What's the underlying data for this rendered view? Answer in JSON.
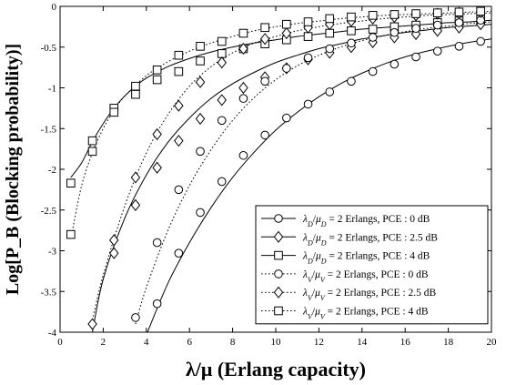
{
  "chart_data": {
    "type": "line",
    "title": "",
    "xlabel": "λ/μ (Erlang capacity)",
    "ylabel": "Log[P_B (Blocking probability)]",
    "xlim": [
      0,
      20
    ],
    "ylim": [
      -4,
      0
    ],
    "x_ticks": [
      "0",
      "2",
      "4",
      "6",
      "8",
      "10",
      "12",
      "14",
      "16",
      "18",
      "20"
    ],
    "y_ticks": [
      "0",
      "-0.5",
      "-1",
      "-1.5",
      "-2",
      "-2.5",
      "-3",
      "-3.5",
      "-4"
    ],
    "grid": false,
    "legend_position": "bottom-right",
    "series": [
      {
        "name": "λD/μD = 2 Erlangs, PCE : 0 dB",
        "label_parts": [
          "λ",
          "D",
          "/",
          "μ",
          "D",
          " = 2 Erlangs, PCE : 0 dB"
        ],
        "marker": "circle",
        "line": "solid",
        "curve": [
          [
            4.05,
            -4.0
          ],
          [
            5,
            -3.4
          ],
          [
            6,
            -2.9
          ],
          [
            7,
            -2.47
          ],
          [
            8,
            -2.1
          ],
          [
            9,
            -1.79
          ],
          [
            10,
            -1.52
          ],
          [
            11,
            -1.3
          ],
          [
            12,
            -1.11
          ],
          [
            13,
            -0.95
          ],
          [
            14,
            -0.82
          ],
          [
            15,
            -0.71
          ],
          [
            16,
            -0.62
          ],
          [
            17,
            -0.55
          ],
          [
            18,
            -0.49
          ],
          [
            19,
            -0.44
          ],
          [
            20,
            -0.4
          ]
        ],
        "points": [
          [
            4.5,
            -3.65
          ],
          [
            5.5,
            -3.03
          ],
          [
            6.5,
            -2.53
          ],
          [
            7.5,
            -2.15
          ],
          [
            8.5,
            -1.83
          ],
          [
            9.5,
            -1.58
          ],
          [
            10.5,
            -1.37
          ],
          [
            11.5,
            -1.2
          ],
          [
            12.5,
            -1.05
          ],
          [
            13.5,
            -0.92
          ],
          [
            14.5,
            -0.8
          ],
          [
            15.5,
            -0.71
          ],
          [
            16.5,
            -0.62
          ],
          [
            17.5,
            -0.55
          ],
          [
            18.5,
            -0.49
          ],
          [
            19.5,
            -0.43
          ]
        ]
      },
      {
        "name": "λD/μD = 2 Erlangs, PCE : 2.5 dB",
        "label_parts": [
          "λ",
          "D",
          "/",
          "μ",
          "D",
          " = 2 Erlangs, PCE : 2.5 dB"
        ],
        "marker": "diamond",
        "line": "solid",
        "curve": [
          [
            1.5,
            -4.0
          ],
          [
            2,
            -3.35
          ],
          [
            3,
            -2.6
          ],
          [
            4,
            -2.07
          ],
          [
            5,
            -1.67
          ],
          [
            6,
            -1.37
          ],
          [
            7,
            -1.13
          ],
          [
            8,
            -0.95
          ],
          [
            9,
            -0.81
          ],
          [
            10,
            -0.69
          ],
          [
            11,
            -0.6
          ],
          [
            12,
            -0.52
          ],
          [
            13,
            -0.46
          ],
          [
            14,
            -0.4
          ],
          [
            15,
            -0.36
          ],
          [
            16,
            -0.32
          ],
          [
            17,
            -0.29
          ],
          [
            18,
            -0.26
          ],
          [
            19,
            -0.24
          ],
          [
            20,
            -0.22
          ]
        ],
        "points": [
          [
            2.5,
            -3.03
          ],
          [
            3.5,
            -2.44
          ],
          [
            4.5,
            -1.98
          ],
          [
            5.5,
            -1.65
          ],
          [
            6.5,
            -1.38
          ],
          [
            7.5,
            -1.15
          ],
          [
            8.5,
            -1.0
          ],
          [
            9.5,
            -0.87
          ],
          [
            10.5,
            -0.76
          ],
          [
            11.5,
            -0.65
          ],
          [
            12.5,
            -0.57
          ],
          [
            13.5,
            -0.5
          ],
          [
            14.5,
            -0.44
          ],
          [
            15.5,
            -0.38
          ],
          [
            16.5,
            -0.34
          ],
          [
            17.5,
            -0.3
          ],
          [
            18.5,
            -0.26
          ],
          [
            19.5,
            -0.22
          ]
        ]
      },
      {
        "name": "λD/μD = 2 Erlangs, PCE : 4 dB",
        "label_parts": [
          "λ",
          "D",
          "/",
          "μ",
          "D",
          " = 2 Erlangs, PCE : 4 dB"
        ],
        "marker": "square",
        "line": "solid",
        "curve": [
          [
            0.5,
            -2.1
          ],
          [
            1,
            -1.92
          ],
          [
            1.5,
            -1.66
          ],
          [
            2,
            -1.44
          ],
          [
            2.5,
            -1.25
          ],
          [
            3,
            -1.1
          ],
          [
            3.5,
            -0.98
          ],
          [
            4,
            -0.88
          ],
          [
            5,
            -0.74
          ],
          [
            6,
            -0.64
          ],
          [
            7,
            -0.56
          ],
          [
            8,
            -0.5
          ],
          [
            9,
            -0.45
          ],
          [
            10,
            -0.41
          ],
          [
            11,
            -0.37
          ],
          [
            12,
            -0.34
          ],
          [
            13,
            -0.31
          ],
          [
            14,
            -0.28
          ],
          [
            15,
            -0.26
          ],
          [
            16,
            -0.24
          ],
          [
            17,
            -0.22
          ],
          [
            18,
            -0.2
          ],
          [
            19,
            -0.19
          ],
          [
            20,
            -0.17
          ]
        ],
        "points": [
          [
            0.5,
            -2.17
          ],
          [
            1.5,
            -1.65
          ],
          [
            2.5,
            -1.25
          ],
          [
            3.5,
            -1.08
          ],
          [
            4.5,
            -0.9
          ],
          [
            5.5,
            -0.8
          ],
          [
            6.5,
            -0.67
          ],
          [
            7.5,
            -0.58
          ],
          [
            8.5,
            -0.52
          ],
          [
            9.5,
            -0.46
          ],
          [
            10.5,
            -0.41
          ],
          [
            11.5,
            -0.37
          ],
          [
            12.5,
            -0.33
          ],
          [
            13.5,
            -0.3
          ],
          [
            14.5,
            -0.28
          ],
          [
            15.5,
            -0.25
          ],
          [
            16.5,
            -0.23
          ],
          [
            17.5,
            -0.2
          ],
          [
            18.5,
            -0.18
          ],
          [
            19.5,
            -0.16
          ]
        ]
      },
      {
        "name": "λV/μV = 2 Erlangs, PCE : 0 dB",
        "label_parts": [
          "λ",
          "V",
          "/",
          "μ",
          "V",
          " = 2 Erlangs, PCE : 0 dB"
        ],
        "marker": "circle",
        "line": "dotted",
        "curve": [
          [
            3.5,
            -3.9
          ],
          [
            4,
            -3.45
          ],
          [
            5,
            -2.75
          ],
          [
            6,
            -2.2
          ],
          [
            7,
            -1.76
          ],
          [
            8,
            -1.4
          ],
          [
            9,
            -1.12
          ],
          [
            10,
            -0.9
          ],
          [
            11,
            -0.73
          ],
          [
            12,
            -0.6
          ],
          [
            13,
            -0.5
          ],
          [
            14,
            -0.42
          ],
          [
            15,
            -0.36
          ],
          [
            16,
            -0.31
          ],
          [
            17,
            -0.27
          ],
          [
            18,
            -0.24
          ],
          [
            19,
            -0.21
          ],
          [
            20,
            -0.19
          ]
        ],
        "points": [
          [
            3.5,
            -3.82
          ],
          [
            4.5,
            -2.9
          ],
          [
            5.5,
            -2.25
          ],
          [
            6.5,
            -1.78
          ],
          [
            7.5,
            -1.4
          ],
          [
            8.5,
            -1.13
          ],
          [
            9.5,
            -0.92
          ],
          [
            10.5,
            -0.76
          ],
          [
            11.5,
            -0.63
          ],
          [
            12.5,
            -0.52
          ],
          [
            13.5,
            -0.45
          ],
          [
            14.5,
            -0.38
          ],
          [
            15.5,
            -0.32
          ],
          [
            16.5,
            -0.27
          ],
          [
            17.5,
            -0.23
          ],
          [
            18.5,
            -0.2
          ],
          [
            19.5,
            -0.17
          ]
        ]
      },
      {
        "name": "λV/μV = 2 Erlangs, PCE : 2.5 dB",
        "label_parts": [
          "λ",
          "V",
          "/",
          "μ",
          "V",
          " = 2 Erlangs, PCE : 2.5 dB"
        ],
        "marker": "diamond",
        "line": "dotted",
        "curve": [
          [
            1.5,
            -3.85
          ],
          [
            2,
            -3.3
          ],
          [
            3,
            -2.45
          ],
          [
            4,
            -1.8
          ],
          [
            5,
            -1.33
          ],
          [
            6,
            -0.98
          ],
          [
            7,
            -0.74
          ],
          [
            8,
            -0.57
          ],
          [
            9,
            -0.45
          ],
          [
            10,
            -0.37
          ],
          [
            11,
            -0.3
          ],
          [
            12,
            -0.25
          ],
          [
            13,
            -0.21
          ],
          [
            14,
            -0.18
          ],
          [
            15,
            -0.15
          ],
          [
            16,
            -0.13
          ],
          [
            17,
            -0.11
          ],
          [
            18,
            -0.1
          ],
          [
            19,
            -0.09
          ],
          [
            20,
            -0.08
          ]
        ],
        "points": [
          [
            1.5,
            -3.9
          ],
          [
            2.5,
            -2.87
          ],
          [
            3.5,
            -2.1
          ],
          [
            4.5,
            -1.57
          ],
          [
            5.5,
            -1.22
          ],
          [
            6.5,
            -0.93
          ],
          [
            7.5,
            -0.69
          ],
          [
            8.5,
            -0.52
          ],
          [
            9.5,
            -0.4
          ],
          [
            10.5,
            -0.33
          ],
          [
            11.5,
            -0.26
          ],
          [
            12.5,
            -0.22
          ],
          [
            13.5,
            -0.18
          ],
          [
            14.5,
            -0.15
          ],
          [
            15.5,
            -0.13
          ],
          [
            16.5,
            -0.11
          ],
          [
            17.5,
            -0.09
          ],
          [
            18.5,
            -0.08
          ],
          [
            19.5,
            -0.07
          ]
        ]
      },
      {
        "name": "λV/μV = 2 Erlangs, PCE : 4 dB",
        "label_parts": [
          "λ",
          "V",
          "/",
          "μ",
          "V",
          " = 2 Erlangs, PCE : 4 dB"
        ],
        "marker": "square",
        "line": "dotted",
        "curve": [
          [
            0.5,
            -2.85
          ],
          [
            1,
            -2.2
          ],
          [
            1.5,
            -1.8
          ],
          [
            2,
            -1.5
          ],
          [
            2.5,
            -1.28
          ],
          [
            3,
            -1.1
          ],
          [
            4,
            -0.85
          ],
          [
            5,
            -0.68
          ],
          [
            6,
            -0.55
          ],
          [
            7,
            -0.45
          ],
          [
            8,
            -0.37
          ],
          [
            9,
            -0.3
          ],
          [
            10,
            -0.25
          ],
          [
            11,
            -0.21
          ],
          [
            12,
            -0.18
          ],
          [
            13,
            -0.15
          ],
          [
            14,
            -0.13
          ],
          [
            15,
            -0.11
          ],
          [
            16,
            -0.1
          ],
          [
            17,
            -0.09
          ],
          [
            18,
            -0.08
          ],
          [
            19,
            -0.07
          ],
          [
            20,
            -0.06
          ]
        ],
        "points": [
          [
            0.5,
            -2.8
          ],
          [
            1.5,
            -1.78
          ],
          [
            2.5,
            -1.3
          ],
          [
            3.5,
            -0.98
          ],
          [
            4.5,
            -0.78
          ],
          [
            5.5,
            -0.6
          ],
          [
            6.5,
            -0.49
          ],
          [
            7.5,
            -0.43
          ],
          [
            8.5,
            -0.33
          ],
          [
            9.5,
            -0.26
          ],
          [
            10.5,
            -0.22
          ],
          [
            11.5,
            -0.19
          ],
          [
            12.5,
            -0.15
          ],
          [
            13.5,
            -0.13
          ],
          [
            14.5,
            -0.11
          ],
          [
            15.5,
            -0.1
          ],
          [
            16.5,
            -0.09
          ],
          [
            17.5,
            -0.08
          ],
          [
            18.5,
            -0.07
          ],
          [
            19.5,
            -0.06
          ]
        ]
      }
    ]
  }
}
